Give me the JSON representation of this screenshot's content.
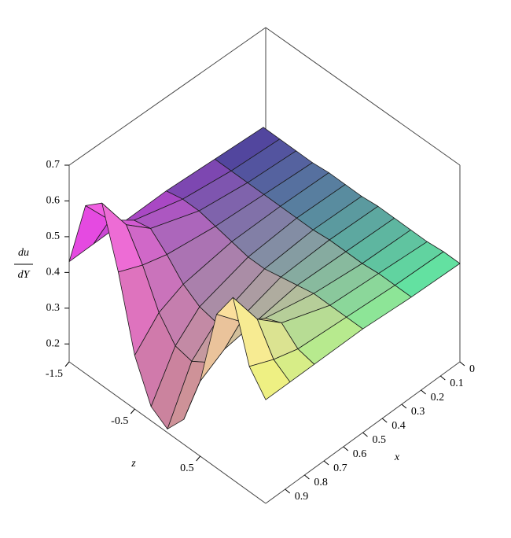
{
  "chart_data": {
    "type": "surface",
    "y_label_numerator": "du",
    "y_label_denominator": "dY",
    "x_label": "x",
    "z_label": "z",
    "x": [
      0,
      0.25,
      0.5,
      0.75,
      0.875,
      1
    ],
    "z": [
      -1.5,
      -1.25,
      -1.0,
      -0.75,
      -0.5,
      -0.25,
      0,
      0.25,
      0.5,
      0.75,
      1.0,
      1.25,
      1.5
    ],
    "values": [
      [
        0.41,
        0.41,
        0.41,
        0.41,
        0.415,
        0.415,
        0.415,
        0.42,
        0.42,
        0.42,
        0.42,
        0.425,
        0.425
      ],
      [
        0.42,
        0.42,
        0.42,
        0.42,
        0.42,
        0.42,
        0.42,
        0.425,
        0.425,
        0.425,
        0.43,
        0.43,
        0.43
      ],
      [
        0.43,
        0.44,
        0.44,
        0.43,
        0.42,
        0.41,
        0.41,
        0.42,
        0.43,
        0.44,
        0.44,
        0.44,
        0.44
      ],
      [
        0.43,
        0.48,
        0.49,
        0.45,
        0.4,
        0.37,
        0.36,
        0.38,
        0.41,
        0.47,
        0.49,
        0.45,
        0.44
      ],
      [
        0.43,
        0.53,
        0.55,
        0.47,
        0.37,
        0.31,
        0.3,
        0.33,
        0.4,
        0.51,
        0.55,
        0.47,
        0.44
      ],
      [
        0.43,
        0.62,
        0.66,
        0.5,
        0.3,
        0.19,
        0.16,
        0.22,
        0.36,
        0.58,
        0.66,
        0.5,
        0.44
      ]
    ],
    "ylim": [
      0.15,
      0.7
    ],
    "yticks": [
      0.2,
      0.3,
      0.4,
      0.5,
      0.6,
      0.7
    ],
    "xlim": [
      0,
      1
    ],
    "xticks": [
      0,
      0.1,
      0.2,
      0.3,
      0.4,
      0.5,
      0.6,
      0.7,
      0.8,
      0.9
    ],
    "zlim": [
      -1.5,
      1.5
    ],
    "zticks": [
      -1.5,
      -0.5,
      0.5
    ],
    "corner_colors": {
      "x0_zmin": "#3c3f96",
      "x1_zmin": "#e640e0",
      "x0_zmax": "#4fe6a6",
      "x1_zmax": "#f4f47a"
    }
  }
}
